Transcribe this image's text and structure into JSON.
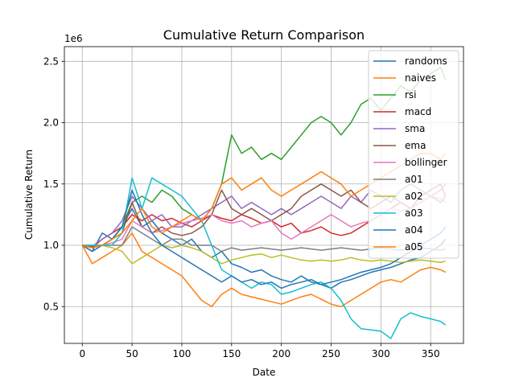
{
  "chart_data": {
    "type": "line",
    "title": "Cumulative Return Comparison",
    "xlabel": "Date",
    "ylabel": "Cumulative Return",
    "y_offset_text": "1e6",
    "xlim": [
      -18,
      383
    ],
    "ylim": [
      200000,
      2620000
    ],
    "xticks": [
      0,
      50,
      100,
      150,
      200,
      250,
      300,
      350
    ],
    "yticks": [
      500000,
      1000000,
      1500000,
      2000000,
      2500000
    ],
    "ytick_labels": [
      "0.5",
      "1.0",
      "1.5",
      "2.0",
      "2.5"
    ],
    "grid": true,
    "legend_position": "top-right",
    "series": [
      {
        "name": "randoms",
        "color": "#1f77b4",
        "x": [
          0,
          10,
          20,
          30,
          40,
          50,
          60,
          70,
          80,
          90,
          100,
          110,
          120,
          130,
          140,
          150,
          160,
          170,
          180,
          190,
          200,
          210,
          220,
          230,
          240,
          250,
          260,
          270,
          280,
          290,
          300,
          310,
          320,
          330,
          340,
          350,
          360,
          365
        ],
        "y": [
          1000000,
          950000,
          1100000,
          1050000,
          1150000,
          1300000,
          1150000,
          1200000,
          1100000,
          1050000,
          1000000,
          1050000,
          950000,
          900000,
          950000,
          850000,
          820000,
          780000,
          800000,
          750000,
          720000,
          700000,
          750000,
          700000,
          680000,
          650000,
          700000,
          720000,
          750000,
          780000,
          800000,
          820000,
          850000,
          880000,
          900000,
          950000,
          1000000,
          1050000
        ]
      },
      {
        "name": "naives",
        "color": "#ff7f0e",
        "x": [
          0,
          10,
          20,
          30,
          40,
          50,
          60,
          70,
          80,
          90,
          100,
          110,
          120,
          130,
          140,
          150,
          160,
          170,
          180,
          190,
          200,
          210,
          220,
          230,
          240,
          250,
          260,
          270,
          280,
          290,
          300,
          310,
          320,
          330,
          340,
          350,
          360,
          365
        ],
        "y": [
          1000000,
          850000,
          900000,
          950000,
          1000000,
          1100000,
          950000,
          900000,
          850000,
          800000,
          750000,
          650000,
          550000,
          500000,
          600000,
          650000,
          600000,
          580000,
          560000,
          540000,
          520000,
          550000,
          580000,
          600000,
          560000,
          520000,
          500000,
          550000,
          600000,
          650000,
          700000,
          720000,
          700000,
          750000,
          800000,
          820000,
          800000,
          780000
        ]
      },
      {
        "name": "rsi",
        "color": "#2ca02c",
        "x": [
          0,
          10,
          20,
          30,
          40,
          50,
          60,
          70,
          80,
          90,
          100,
          110,
          120,
          130,
          140,
          150,
          160,
          170,
          180,
          190,
          200,
          210,
          220,
          230,
          240,
          250,
          260,
          270,
          280,
          290,
          300,
          310,
          320,
          330,
          340,
          350,
          360,
          365
        ],
        "y": [
          1000000,
          980000,
          1000000,
          1050000,
          1150000,
          1350000,
          1400000,
          1350000,
          1450000,
          1400000,
          1300000,
          1250000,
          1200000,
          1300000,
          1500000,
          1900000,
          1750000,
          1800000,
          1700000,
          1750000,
          1700000,
          1800000,
          1900000,
          2000000,
          2050000,
          2000000,
          1900000,
          2000000,
          2150000,
          2200000,
          2100000,
          2200000,
          2300000,
          2250000,
          2350000,
          2400000,
          2450000,
          2350000
        ]
      },
      {
        "name": "macd",
        "color": "#d62728",
        "x": [
          0,
          10,
          20,
          30,
          40,
          50,
          60,
          70,
          80,
          90,
          100,
          110,
          120,
          130,
          140,
          150,
          160,
          170,
          180,
          190,
          200,
          210,
          220,
          230,
          240,
          250,
          260,
          270,
          280,
          290,
          300,
          310,
          320,
          330,
          340,
          350,
          360,
          365
        ],
        "y": [
          1000000,
          980000,
          1050000,
          1100000,
          1150000,
          1250000,
          1200000,
          1250000,
          1200000,
          1220000,
          1180000,
          1150000,
          1200000,
          1250000,
          1220000,
          1200000,
          1250000,
          1220000,
          1180000,
          1200000,
          1150000,
          1180000,
          1100000,
          1120000,
          1150000,
          1100000,
          1080000,
          1100000,
          1150000,
          1200000,
          1250000,
          1300000,
          1350000,
          1300000,
          1400000,
          1450000,
          1500000,
          1400000
        ]
      },
      {
        "name": "sma",
        "color": "#9467bd",
        "x": [
          0,
          10,
          20,
          30,
          40,
          50,
          60,
          70,
          80,
          90,
          100,
          110,
          120,
          130,
          140,
          150,
          160,
          170,
          180,
          190,
          200,
          210,
          220,
          230,
          240,
          250,
          260,
          270,
          280,
          290,
          300,
          310,
          320,
          330,
          340,
          350,
          360,
          365
        ],
        "y": [
          1000000,
          990000,
          1050000,
          1100000,
          1200000,
          1400000,
          1300000,
          1200000,
          1250000,
          1150000,
          1150000,
          1200000,
          1250000,
          1300000,
          1350000,
          1400000,
          1300000,
          1350000,
          1300000,
          1250000,
          1300000,
          1250000,
          1300000,
          1350000,
          1400000,
          1350000,
          1300000,
          1400000,
          1350000,
          1450000,
          1400000,
          1350000,
          1450000,
          1500000,
          1450000,
          1400000,
          1450000,
          1500000
        ]
      },
      {
        "name": "ema",
        "color": "#8c564b",
        "x": [
          0,
          10,
          20,
          30,
          40,
          50,
          60,
          70,
          80,
          90,
          100,
          110,
          120,
          130,
          140,
          150,
          160,
          170,
          180,
          190,
          200,
          210,
          220,
          230,
          240,
          250,
          260,
          270,
          280,
          290,
          300,
          310,
          320,
          330,
          340,
          350,
          360,
          365
        ],
        "y": [
          1000000,
          990000,
          1000000,
          1050000,
          1100000,
          1350000,
          1150000,
          1100000,
          1150000,
          1100000,
          1080000,
          1100000,
          1150000,
          1250000,
          1450000,
          1300000,
          1250000,
          1300000,
          1250000,
          1200000,
          1250000,
          1300000,
          1400000,
          1450000,
          1500000,
          1450000,
          1400000,
          1450000,
          1350000,
          1300000,
          1350000,
          1400000,
          1350000,
          1300000,
          1350000,
          1400000,
          1350000,
          1400000
        ]
      },
      {
        "name": "bollinger",
        "color": "#e377c2",
        "x": [
          0,
          10,
          20,
          30,
          40,
          50,
          60,
          70,
          80,
          90,
          100,
          110,
          120,
          130,
          140,
          150,
          160,
          170,
          180,
          190,
          200,
          210,
          220,
          230,
          240,
          250,
          260,
          270,
          280,
          290,
          300,
          310,
          320,
          330,
          340,
          350,
          360,
          365
        ],
        "y": [
          1000000,
          1000000,
          1000000,
          1020000,
          1050000,
          1200000,
          1150000,
          1100000,
          1120000,
          1150000,
          1180000,
          1200000,
          1220000,
          1250000,
          1200000,
          1180000,
          1200000,
          1150000,
          1180000,
          1200000,
          1100000,
          1050000,
          1100000,
          1150000,
          1200000,
          1250000,
          1200000,
          1150000,
          1180000,
          1200000,
          1250000,
          1300000,
          1280000,
          1300000,
          1350000,
          1400000,
          1380000,
          1350000
        ]
      },
      {
        "name": "a01",
        "color": "#7f7f7f",
        "x": [
          0,
          10,
          20,
          30,
          40,
          50,
          60,
          70,
          80,
          90,
          100,
          110,
          120,
          130,
          140,
          150,
          160,
          170,
          180,
          190,
          200,
          210,
          220,
          230,
          240,
          250,
          260,
          270,
          280,
          290,
          300,
          310,
          320,
          330,
          340,
          350,
          360,
          365
        ],
        "y": [
          1000000,
          1000000,
          1000000,
          1000000,
          1000000,
          1150000,
          1100000,
          1050000,
          1000000,
          1050000,
          1050000,
          1000000,
          1000000,
          1000000,
          950000,
          980000,
          960000,
          970000,
          980000,
          970000,
          960000,
          970000,
          980000,
          970000,
          960000,
          970000,
          980000,
          970000,
          960000,
          970000,
          980000,
          970000,
          960000,
          970000,
          980000,
          970000,
          960000,
          970000
        ]
      },
      {
        "name": "a02",
        "color": "#bcbd22",
        "x": [
          0,
          10,
          20,
          30,
          40,
          50,
          60,
          70,
          80,
          90,
          100,
          110,
          120,
          130,
          140,
          150,
          160,
          170,
          180,
          190,
          200,
          210,
          220,
          230,
          240,
          250,
          260,
          270,
          280,
          290,
          300,
          310,
          320,
          330,
          340,
          350,
          360,
          365
        ],
        "y": [
          1000000,
          1000000,
          1000000,
          980000,
          950000,
          850000,
          900000,
          950000,
          1000000,
          980000,
          1000000,
          980000,
          950000,
          900000,
          850000,
          880000,
          900000,
          920000,
          930000,
          900000,
          920000,
          900000,
          880000,
          870000,
          880000,
          870000,
          880000,
          900000,
          880000,
          870000,
          880000,
          870000,
          860000,
          870000,
          880000,
          870000,
          860000,
          870000
        ]
      },
      {
        "name": "a03",
        "color": "#17becf",
        "x": [
          0,
          10,
          20,
          30,
          40,
          50,
          60,
          70,
          80,
          90,
          100,
          110,
          120,
          130,
          140,
          150,
          160,
          170,
          180,
          190,
          200,
          210,
          220,
          230,
          240,
          250,
          260,
          270,
          280,
          290,
          300,
          310,
          320,
          330,
          340,
          350,
          360,
          365
        ],
        "y": [
          1000000,
          1000000,
          1000000,
          1000000,
          1100000,
          1550000,
          1300000,
          1550000,
          1500000,
          1450000,
          1400000,
          1300000,
          1200000,
          1000000,
          800000,
          750000,
          700000,
          650000,
          700000,
          680000,
          600000,
          620000,
          650000,
          680000,
          700000,
          650000,
          550000,
          400000,
          320000,
          310000,
          300000,
          240000,
          400000,
          450000,
          420000,
          400000,
          380000,
          350000
        ]
      },
      {
        "name": "a04",
        "color": "#1f77b4",
        "x": [
          0,
          10,
          20,
          30,
          40,
          50,
          60,
          70,
          80,
          90,
          100,
          110,
          120,
          130,
          140,
          150,
          160,
          170,
          180,
          190,
          200,
          210,
          220,
          230,
          240,
          250,
          260,
          270,
          280,
          290,
          300,
          310,
          320,
          330,
          340,
          350,
          360,
          365
        ],
        "y": [
          1000000,
          950000,
          1000000,
          1050000,
          1150000,
          1450000,
          1250000,
          1100000,
          1000000,
          950000,
          900000,
          850000,
          800000,
          750000,
          700000,
          750000,
          700000,
          720000,
          680000,
          700000,
          650000,
          680000,
          700000,
          720000,
          680000,
          700000,
          720000,
          750000,
          780000,
          800000,
          820000,
          850000,
          900000,
          950000,
          1000000,
          1050000,
          1100000,
          1150000
        ]
      },
      {
        "name": "a05",
        "color": "#ff7f0e",
        "x": [
          0,
          10,
          20,
          30,
          40,
          50,
          60,
          70,
          80,
          90,
          100,
          110,
          120,
          130,
          140,
          150,
          160,
          170,
          180,
          190,
          200,
          210,
          220,
          230,
          240,
          250,
          260,
          270,
          280,
          290,
          300,
          310,
          320,
          330,
          340,
          350,
          360,
          365
        ],
        "y": [
          1000000,
          980000,
          1000000,
          1050000,
          1100000,
          1200000,
          1300000,
          1150000,
          1100000,
          1150000,
          1200000,
          1250000,
          1200000,
          1300000,
          1500000,
          1550000,
          1450000,
          1500000,
          1550000,
          1450000,
          1400000,
          1450000,
          1500000,
          1550000,
          1600000,
          1550000,
          1500000,
          1400000,
          1450000,
          1500000,
          1550000,
          1600000,
          1650000,
          1700000,
          1750000,
          1750000,
          1700000,
          1750000
        ]
      }
    ]
  }
}
